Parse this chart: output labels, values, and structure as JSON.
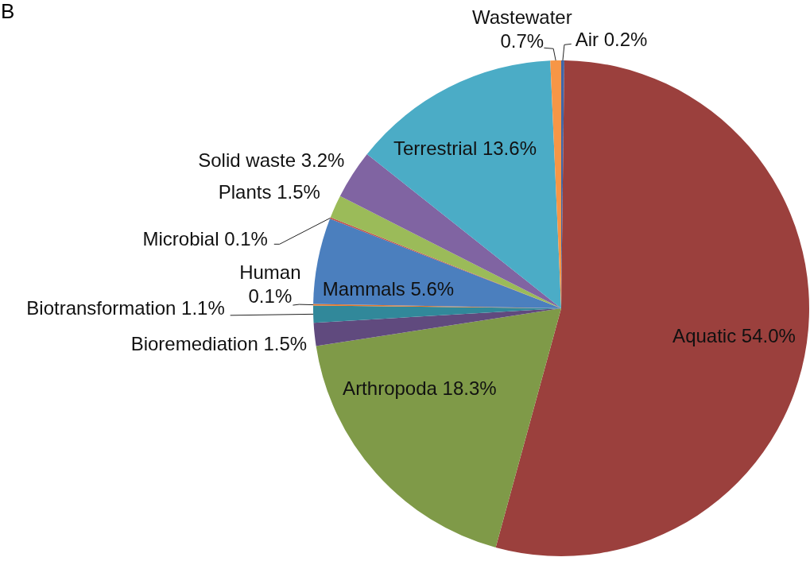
{
  "chart_data": {
    "type": "pie",
    "title": "B",
    "categories": [
      "Air",
      "Aquatic",
      "Arthropoda",
      "Bioremediation",
      "Biotransformation",
      "Human",
      "Mammals",
      "Microbial",
      "Plants",
      "Solid waste",
      "Terrestrial",
      "Wastewater"
    ],
    "values": [
      0.2,
      54.0,
      18.3,
      1.5,
      1.1,
      0.1,
      5.6,
      0.1,
      1.5,
      3.2,
      13.6,
      0.7
    ],
    "value_labels": [
      "0.2%",
      "54.0%",
      "18.3%",
      "1.5%",
      "1.1%",
      "0.1%",
      "5.6%",
      "0.1%",
      "1.5%",
      "3.2%",
      "13.6%",
      "0.7%"
    ],
    "colors": [
      "#4066a8",
      "#9b403d",
      "#7f9a48",
      "#604a7e",
      "#31889a",
      "#e8782a",
      "#4b7fbe",
      "#c0504d",
      "#9bbb59",
      "#8064a2",
      "#4bacc6",
      "#f79646"
    ]
  }
}
